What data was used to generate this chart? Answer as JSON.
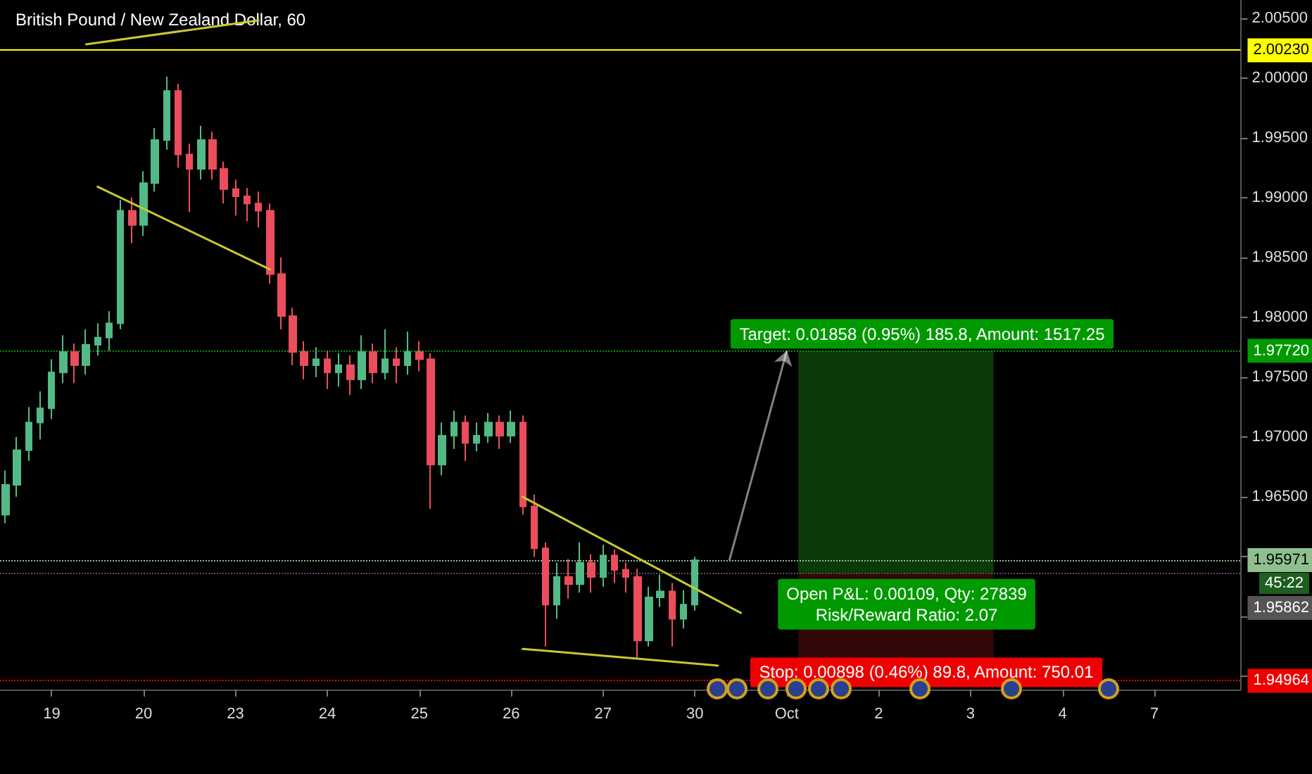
{
  "chart_data": {
    "type": "candlestick",
    "title": "British Pound / New Zealand Dollar, 60",
    "categories": [
      null,
      null,
      null,
      null,
      "19",
      null,
      null,
      null,
      null,
      null,
      null,
      null,
      "20",
      null,
      null,
      null,
      null,
      null,
      null,
      null,
      "23",
      null,
      null,
      null,
      null,
      null,
      null,
      null,
      "24",
      null,
      null,
      null,
      null,
      null,
      null,
      null,
      "25",
      null,
      null,
      null,
      null,
      null,
      null,
      null,
      "26",
      null,
      null,
      null,
      null,
      null,
      null,
      null,
      "27",
      null,
      null,
      null,
      null,
      null,
      null,
      null,
      "30",
      null,
      null,
      null,
      null,
      null,
      null,
      null,
      "Oct",
      null,
      null,
      null,
      null,
      null,
      null,
      null,
      "2",
      null,
      null,
      null,
      null,
      null,
      null,
      null,
      "3",
      null,
      null,
      null,
      null,
      null,
      null,
      null,
      "4",
      null,
      null,
      null,
      null,
      null,
      null,
      null,
      "7",
      null,
      null,
      null,
      null,
      null,
      null,
      null
    ],
    "ohlc": [
      [
        1.9635,
        1.9672,
        1.9628,
        1.966
      ],
      [
        1.966,
        1.97,
        1.965,
        1.9689
      ],
      [
        1.9689,
        1.9725,
        1.968,
        1.9712
      ],
      [
        1.9712,
        1.9738,
        1.9698,
        1.9724
      ],
      [
        1.9724,
        1.9765,
        1.9715,
        1.9754
      ],
      [
        1.9754,
        1.9785,
        1.9745,
        1.9771
      ],
      [
        1.9771,
        1.9778,
        1.9745,
        1.976
      ],
      [
        1.976,
        1.979,
        1.9752,
        1.9777
      ],
      [
        1.9777,
        1.9795,
        1.9768,
        1.9783
      ],
      [
        1.9783,
        1.9805,
        1.9772,
        1.9795
      ],
      [
        1.9795,
        1.9898,
        1.979,
        1.9889
      ],
      [
        1.9889,
        1.99,
        1.9862,
        1.9877
      ],
      [
        1.9877,
        1.9922,
        1.9868,
        1.9912
      ],
      [
        1.9912,
        1.9958,
        1.9905,
        1.9948
      ],
      [
        1.9948,
        2.0001,
        1.994,
        1.9989
      ],
      [
        1.9989,
        1.9995,
        1.9925,
        1.9936
      ],
      [
        1.9936,
        1.9945,
        1.9888,
        1.9924
      ],
      [
        1.9924,
        1.996,
        1.9915,
        1.9948
      ],
      [
        1.9948,
        1.9955,
        1.9915,
        1.9924
      ],
      [
        1.9924,
        1.993,
        1.9895,
        1.9907
      ],
      [
        1.9907,
        1.9915,
        1.9885,
        1.9901
      ],
      [
        1.9901,
        1.9908,
        1.988,
        1.9895
      ],
      [
        1.9895,
        1.9905,
        1.9875,
        1.9889
      ],
      [
        1.9889,
        1.9895,
        1.9828,
        1.9836
      ],
      [
        1.9836,
        1.985,
        1.979,
        1.9801
      ],
      [
        1.9801,
        1.9808,
        1.976,
        1.9771
      ],
      [
        1.9771,
        1.978,
        1.9748,
        1.976
      ],
      [
        1.976,
        1.9775,
        1.975,
        1.9765
      ],
      [
        1.9765,
        1.9772,
        1.974,
        1.9754
      ],
      [
        1.9754,
        1.977,
        1.9742,
        1.976
      ],
      [
        1.976,
        1.9768,
        1.9735,
        1.9748
      ],
      [
        1.9748,
        1.9785,
        1.974,
        1.9771
      ],
      [
        1.9771,
        1.9778,
        1.9745,
        1.9754
      ],
      [
        1.9754,
        1.979,
        1.9748,
        1.9765
      ],
      [
        1.9765,
        1.9775,
        1.9745,
        1.976
      ],
      [
        1.976,
        1.9788,
        1.9752,
        1.9771
      ],
      [
        1.9771,
        1.978,
        1.9755,
        1.9765
      ],
      [
        1.9765,
        1.977,
        1.964,
        1.9677
      ],
      [
        1.9677,
        1.9712,
        1.9668,
        1.9701
      ],
      [
        1.9701,
        1.9722,
        1.969,
        1.9712
      ],
      [
        1.9712,
        1.9718,
        1.968,
        1.9695
      ],
      [
        1.9695,
        1.9712,
        1.9688,
        1.9701
      ],
      [
        1.9701,
        1.972,
        1.9695,
        1.9712
      ],
      [
        1.9712,
        1.9718,
        1.969,
        1.9701
      ],
      [
        1.9701,
        1.9722,
        1.9695,
        1.9712
      ],
      [
        1.9712,
        1.9718,
        1.9635,
        1.9642
      ],
      [
        1.9642,
        1.9652,
        1.96,
        1.9607
      ],
      [
        1.9607,
        1.9612,
        1.9525,
        1.956
      ],
      [
        1.956,
        1.9595,
        1.9548,
        1.9583
      ],
      [
        1.9583,
        1.9598,
        1.9565,
        1.9577
      ],
      [
        1.9577,
        1.9612,
        1.957,
        1.9595
      ],
      [
        1.9595,
        1.9602,
        1.957,
        1.9583
      ],
      [
        1.9583,
        1.961,
        1.9575,
        1.9601
      ],
      [
        1.9601,
        1.9606,
        1.9578,
        1.9589
      ],
      [
        1.9589,
        1.9595,
        1.957,
        1.9583
      ],
      [
        1.9583,
        1.959,
        1.9515,
        1.953
      ],
      [
        1.953,
        1.9575,
        1.9525,
        1.9566
      ],
      [
        1.9566,
        1.9585,
        1.9558,
        1.9571
      ],
      [
        1.9571,
        1.9578,
        1.9525,
        1.9548
      ],
      [
        1.9548,
        1.9572,
        1.954,
        1.956
      ],
      [
        1.956,
        1.96,
        1.9555,
        1.9597
      ],
      null,
      null,
      null,
      null,
      null,
      null,
      null,
      null,
      null,
      null,
      null,
      null,
      null,
      null,
      null,
      null,
      null,
      null,
      null,
      null,
      null,
      null,
      null,
      null,
      null,
      null,
      null,
      null,
      null,
      null,
      null,
      null,
      null,
      null,
      null,
      null,
      null,
      null,
      null,
      null,
      null,
      null,
      null,
      null,
      null,
      null,
      null
    ],
    "series": [
      {
        "type": "line",
        "color": "#c8c832",
        "values": [
          null,
          null,
          null,
          null,
          null,
          null,
          null,
          2.0028,
          null,
          null,
          null,
          null,
          null,
          null,
          null,
          null,
          null,
          null,
          null,
          null,
          null,
          null,
          2.0048,
          null,
          null,
          null,
          null,
          null,
          null,
          null,
          null,
          null,
          null,
          null,
          null,
          null,
          null,
          null,
          null,
          null,
          null,
          null,
          null,
          null,
          null,
          null,
          null,
          null,
          null,
          null,
          null,
          null,
          null,
          null,
          null,
          null,
          null,
          null,
          null,
          null,
          null,
          null,
          null,
          null,
          null,
          null,
          null,
          null,
          null,
          null,
          null,
          null,
          null,
          null,
          null,
          null,
          null,
          null,
          null,
          null,
          null,
          null,
          null,
          null,
          null,
          null,
          null,
          null,
          null,
          null,
          null,
          null,
          null,
          null,
          null,
          null,
          null,
          null,
          null,
          null,
          null,
          null,
          null,
          null,
          null,
          null,
          null,
          null
        ]
      },
      {
        "type": "line",
        "color": "#c8c832",
        "values": [
          null,
          null,
          null,
          null,
          null,
          null,
          null,
          null,
          1.9909,
          null,
          null,
          null,
          null,
          null,
          null,
          null,
          null,
          null,
          null,
          null,
          null,
          null,
          null,
          1.984,
          null,
          null,
          null,
          null,
          null,
          null,
          null,
          null,
          null,
          null,
          null,
          null,
          null,
          null,
          null,
          null,
          null,
          null,
          null,
          null,
          null,
          null,
          null,
          null,
          null,
          null,
          null,
          null,
          null,
          null,
          null,
          null,
          null,
          null,
          null,
          null,
          null,
          null,
          null,
          null,
          null,
          null,
          null,
          null,
          null,
          null,
          null,
          null,
          null,
          null,
          null,
          null,
          null,
          null,
          null,
          null,
          null,
          null,
          null,
          null,
          null,
          null,
          null,
          null,
          null,
          null,
          null,
          null,
          null,
          null,
          null,
          null,
          null,
          null,
          null,
          null,
          null,
          null,
          null,
          null,
          null,
          null,
          null,
          null
        ]
      },
      {
        "type": "line",
        "color": "#c8c832",
        "values": [
          null,
          null,
          null,
          null,
          null,
          null,
          null,
          null,
          null,
          null,
          null,
          null,
          null,
          null,
          null,
          null,
          null,
          null,
          null,
          null,
          null,
          null,
          null,
          null,
          null,
          null,
          null,
          null,
          null,
          null,
          null,
          null,
          null,
          null,
          null,
          null,
          null,
          null,
          null,
          null,
          null,
          null,
          null,
          null,
          null,
          1.965,
          null,
          null,
          null,
          null,
          null,
          null,
          null,
          null,
          null,
          null,
          null,
          null,
          null,
          null,
          null,
          null,
          null,
          null,
          1.9553,
          null,
          null,
          null,
          null,
          null,
          null,
          null,
          null,
          null,
          null,
          null,
          null,
          null,
          null,
          null,
          null,
          null,
          null,
          null,
          null,
          null,
          null,
          null,
          null,
          null,
          null,
          null,
          null,
          null,
          null,
          null,
          null,
          null,
          null,
          null,
          null,
          null,
          null,
          null,
          null,
          null,
          null,
          null
        ]
      },
      {
        "type": "line",
        "color": "#c8c832",
        "values": [
          null,
          null,
          null,
          null,
          null,
          null,
          null,
          null,
          null,
          null,
          null,
          null,
          null,
          null,
          null,
          null,
          null,
          null,
          null,
          null,
          null,
          null,
          null,
          null,
          null,
          null,
          null,
          null,
          null,
          null,
          null,
          null,
          null,
          null,
          null,
          null,
          null,
          null,
          null,
          null,
          null,
          null,
          null,
          null,
          null,
          1.9523,
          null,
          null,
          null,
          null,
          null,
          null,
          null,
          null,
          null,
          null,
          null,
          null,
          null,
          null,
          null,
          null,
          1.9509,
          null,
          null,
          null,
          null,
          null,
          null,
          null,
          null,
          null,
          null,
          null,
          null,
          null,
          null,
          null,
          null,
          null,
          null,
          null,
          null,
          null,
          null,
          null,
          null,
          null,
          null,
          null,
          null,
          null,
          null,
          null,
          null,
          null,
          null,
          null,
          null,
          null,
          null,
          null,
          null,
          null,
          null,
          null,
          null,
          null
        ]
      }
    ],
    "ylim": [
      1.9489,
      2.0065
    ],
    "yticks": [
      {
        "value": 1.95,
        "label": null
      },
      {
        "value": 1.955,
        "label": null
      },
      {
        "value": 1.96,
        "label": null
      },
      {
        "value": 1.965,
        "label": "1.96500"
      },
      {
        "value": 1.97,
        "label": "1.97000"
      },
      {
        "value": 1.975,
        "label": "1.97500"
      },
      {
        "value": 1.98,
        "label": "1.98000"
      },
      {
        "value": 1.985,
        "label": "1.98500"
      },
      {
        "value": 1.99,
        "label": "1.99000"
      },
      {
        "value": 1.995,
        "label": "1.99500"
      },
      {
        "value": 2,
        "label": "2.00000"
      },
      {
        "value": 2.005,
        "label": "2.00500"
      }
    ],
    "ref_lines": [
      {
        "axis": "y",
        "value": 2.0023,
        "label": "2.00230",
        "color": "#ffff00",
        "line_style": "solid"
      },
      {
        "axis": "y",
        "value": 1.95971,
        "label": "1.95971",
        "color": "#8fbf8f",
        "line_style": "dotted"
      },
      {
        "axis": "y",
        "value": 1.9772,
        "label": "1.97720",
        "color": "#009900",
        "line_style": "dotted"
      },
      {
        "axis": "y",
        "value": 1.95862,
        "label": "1.95862",
        "color": "#555555",
        "line_style": "dotted"
      },
      {
        "axis": "y",
        "value": 1.94964,
        "label": "1.94964",
        "color": "#ee0000",
        "line_style": "dotted"
      }
    ],
    "bands": [
      {
        "axis": "y",
        "from": 1.95862,
        "to": 1.9772,
        "color": "#0a3a0a"
      },
      {
        "axis": "y",
        "from": 1.94964,
        "to": 1.95862,
        "color": "#330808"
      }
    ],
    "annotations": [
      {
        "text": "Target: 0.01858 (0.95%) 185.8, Amount: 1517.25",
        "y": 1.9772
      },
      {
        "text": "Open P&L: 0.00109, Qty: 27839\nRisk/Reward Ratio: 2.07",
        "y": 1.95862
      },
      {
        "text": "Stop: 0.00898 (0.46%) 89.8, Amount: 750.01",
        "y": 1.94964
      },
      "45:22"
    ],
    "grid": false
  }
}
